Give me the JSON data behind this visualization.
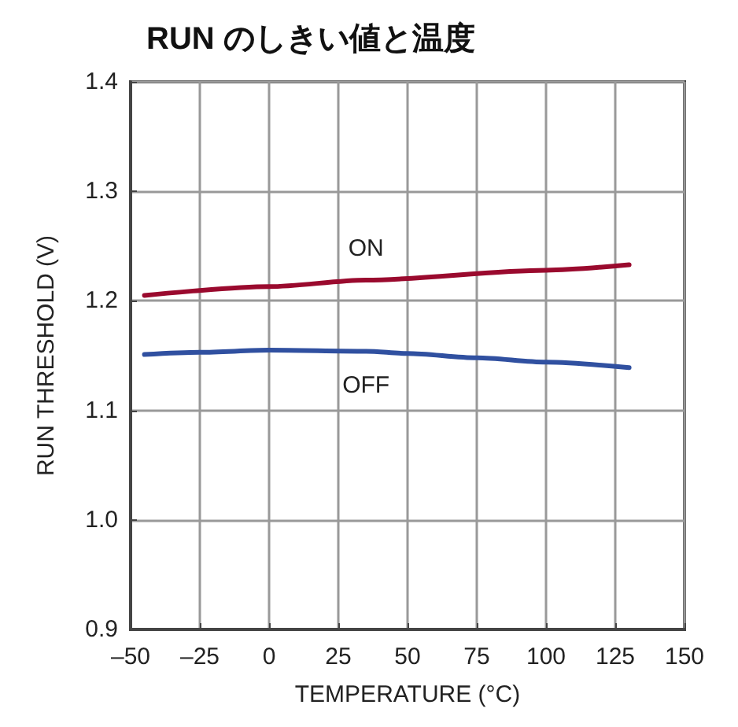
{
  "chart_data": {
    "type": "line",
    "title": "RUN のしきい値と温度",
    "xlabel": "TEMPERATURE (°C)",
    "ylabel": "RUN THRESHOLD (V)",
    "xlim": [
      -50,
      150
    ],
    "xticks": [
      {
        "value": -50,
        "label": "–50"
      },
      {
        "value": -25,
        "label": "–25"
      },
      0,
      25,
      50,
      75,
      100,
      125,
      150
    ],
    "ylim": [
      0.9,
      1.4
    ],
    "yticks": [
      0.9,
      {
        "value": 1,
        "label": "1.0"
      },
      1.1,
      1.2,
      1.3,
      1.4
    ],
    "grid": true,
    "marker": "none",
    "line_style": "solid",
    "series": [
      {
        "name": "ON",
        "color": "#9a0a2e",
        "x": [
          -45,
          0,
          35,
          100,
          130
        ],
        "values": [
          1.205,
          1.213,
          1.219,
          1.228,
          1.233
        ]
      },
      {
        "name": "OFF",
        "color": "#3050a0",
        "x": [
          -45,
          -25,
          0,
          35,
          50,
          75,
          100,
          130
        ],
        "values": [
          1.151,
          1.153,
          1.155,
          1.154,
          1.152,
          1.148,
          1.144,
          1.139
        ]
      }
    ]
  }
}
